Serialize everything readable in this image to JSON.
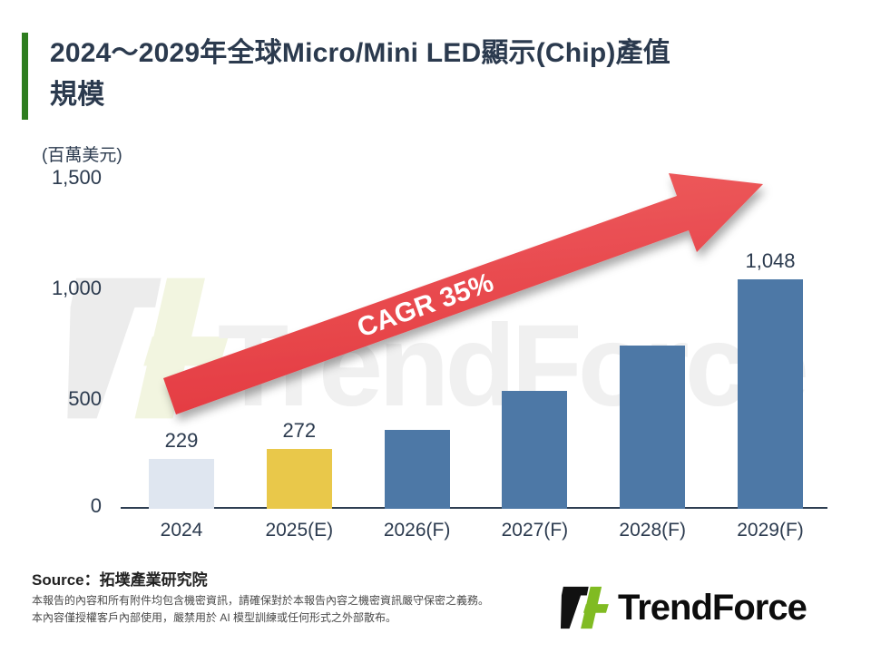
{
  "title": {
    "line1": "2024～2029年全球Micro/Mini LED顯示(Chip)產值",
    "line2": "規模"
  },
  "chart_data": {
    "type": "bar",
    "title": "2024～2029年全球Micro/Mini LED顯示(Chip)產值規模",
    "unit_label": "(百萬美元)",
    "categories": [
      "2024",
      "2025(E)",
      "2026(F)",
      "2027(F)",
      "2028(F)",
      "2029(F)"
    ],
    "values": [
      229,
      272,
      360,
      540,
      745,
      1048
    ],
    "value_labels": [
      "229",
      "272",
      "",
      "",
      "",
      "1,048"
    ],
    "bar_colors": [
      "#dfe6f0",
      "#e9c84a",
      "#4d78a6",
      "#4d78a6",
      "#4d78a6",
      "#4d78a6"
    ],
    "yticks": [
      "1,500",
      "1,000",
      "500",
      "0"
    ],
    "ylim": [
      0,
      1500
    ],
    "grid": false,
    "legend": "none",
    "annotation": "CAGR 35%"
  },
  "watermark": {
    "text": "TrendForce"
  },
  "footer": {
    "source": "Source：拓墣產業研究院",
    "disclaimer_line1": "本報告的內容和所有附件均包含機密資訊，請確保對於本報告內容之機密資訊嚴守保密之義務。",
    "disclaimer_line2": "本內容僅授權客戶內部使用，嚴禁用於 AI 模型訓練或任何形式之外部散布。",
    "logo_text": "TrendForce"
  },
  "colors": {
    "accent_green": "#2e7d1f",
    "logo_green": "#80bb22",
    "arrow_red": "#e8484c",
    "bar_blue": "#4d78a6",
    "bar_yellow": "#e9c84a",
    "bar_light": "#dfe6f0",
    "text_dark": "#2b3a4e"
  }
}
